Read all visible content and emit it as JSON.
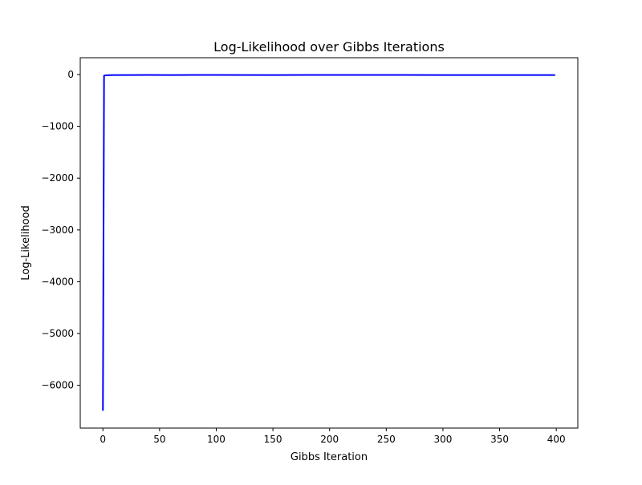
{
  "chart_data": {
    "type": "line",
    "title": "Log-Likelihood over Gibbs Iterations",
    "xlabel": "Gibbs Iteration",
    "ylabel": "Log-Likelihood",
    "xlim": [
      -20,
      419
    ],
    "ylim": [
      -6825,
      325
    ],
    "x_ticks": [
      0,
      50,
      100,
      150,
      200,
      250,
      300,
      350,
      400
    ],
    "y_ticks": [
      0,
      -1000,
      -2000,
      -3000,
      -4000,
      -5000,
      -6000
    ],
    "x_tick_labels": [
      "0",
      "50",
      "100",
      "150",
      "200",
      "250",
      "300",
      "350",
      "400"
    ],
    "y_tick_labels": [
      "0",
      "−1000",
      "−2000",
      "−3000",
      "−4000",
      "−5000",
      "−6000"
    ],
    "grid": false,
    "series": [
      {
        "color": "#0000ff",
        "x": [
          0,
          1,
          2,
          5,
          10,
          20,
          40,
          60,
          80,
          100,
          150,
          200,
          250,
          300,
          350,
          399
        ],
        "y": [
          -6490,
          -20,
          -15,
          -12,
          -10,
          -9,
          -8,
          -9,
          -8,
          -8,
          -9,
          -8,
          -8,
          -9,
          -10,
          -9
        ]
      }
    ]
  }
}
